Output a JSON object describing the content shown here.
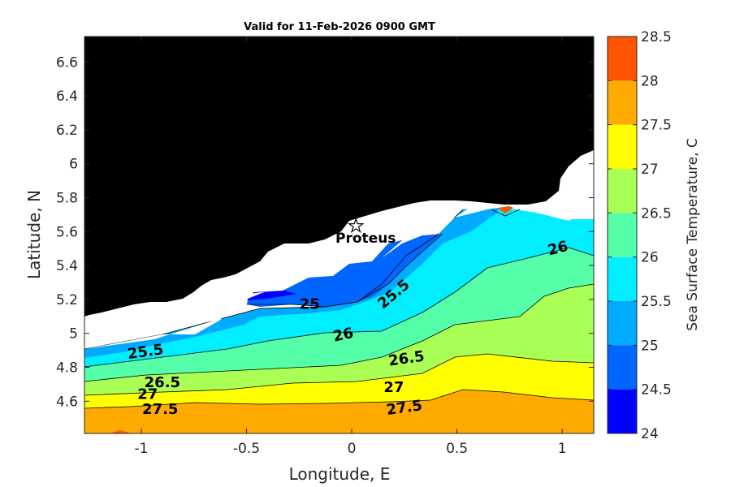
{
  "chart_data": {
    "type": "filled-contour",
    "title": "Valid for 11-Feb-2026 0900 GMT",
    "xlabel": "Longitude, E",
    "ylabel": "Latitude, N",
    "xlim": [
      -1.27,
      1.15
    ],
    "ylim": [
      4.41,
      6.75
    ],
    "xticks": [
      -1,
      -0.5,
      0,
      0.5,
      1
    ],
    "xtick_labels": [
      "-1",
      "-0.5",
      "0",
      "0.5",
      "1"
    ],
    "yticks": [
      4.6,
      4.8,
      5,
      5.2,
      5.4,
      5.6,
      5.8,
      6,
      6.2,
      6.4,
      6.6
    ],
    "ytick_labels": [
      "4.6",
      "4.8",
      "5",
      "5.2",
      "5.4",
      "5.6",
      "5.8",
      "6",
      "6.2",
      "6.4",
      "6.6"
    ],
    "colorbar": {
      "label": "Sea Surface Temperature, C",
      "range": [
        24,
        28.5
      ],
      "levels": [
        24,
        24.5,
        25,
        25.5,
        26,
        26.5,
        27,
        27.5,
        28,
        28.5
      ],
      "tick_labels": [
        "24",
        "24.5",
        "25",
        "25.5",
        "26",
        "26.5",
        "27",
        "27.5",
        "28",
        "28.5"
      ],
      "colors": [
        "#0000ff",
        "#0066ff",
        "#00aaff",
        "#00eeff",
        "#55ffaa",
        "#aaff55",
        "#ffff00",
        "#ffaa00",
        "#ff5500"
      ]
    },
    "contour_labels": [
      {
        "text": "25.5",
        "lon": -0.98,
        "lat": 4.89,
        "rotation": -8
      },
      {
        "text": "26.5",
        "lon": -0.9,
        "lat": 4.71,
        "rotation": 0
      },
      {
        "text": "27",
        "lon": -0.97,
        "lat": 4.64,
        "rotation": 0
      },
      {
        "text": "27.5",
        "lon": -0.91,
        "lat": 4.55,
        "rotation": 0
      },
      {
        "text": "25",
        "lon": -0.2,
        "lat": 5.17,
        "rotation": 0
      },
      {
        "text": "25.5",
        "lon": 0.2,
        "lat": 5.23,
        "rotation": -40
      },
      {
        "text": "26",
        "lon": -0.04,
        "lat": 4.99,
        "rotation": -12
      },
      {
        "text": "26.5",
        "lon": 0.26,
        "lat": 4.85,
        "rotation": -8
      },
      {
        "text": "27",
        "lon": 0.2,
        "lat": 4.68,
        "rotation": 0
      },
      {
        "text": "27.5",
        "lon": 0.25,
        "lat": 4.56,
        "rotation": -8
      },
      {
        "text": "26",
        "lon": 0.98,
        "lat": 5.5,
        "rotation": -14
      }
    ],
    "site": {
      "name": "Proteus",
      "lon": 0.02,
      "lat": 5.63
    }
  }
}
